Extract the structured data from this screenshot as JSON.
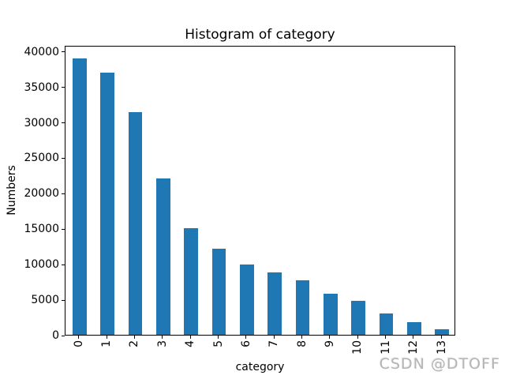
{
  "watermark": {
    "text": "CSDN @DTOFF",
    "color": "#b5b5b5"
  },
  "chart_data": {
    "type": "bar",
    "title": "Histogram of category",
    "xlabel": "category",
    "ylabel": "Numbers",
    "categories": [
      "0",
      "1",
      "2",
      "3",
      "4",
      "5",
      "6",
      "7",
      "8",
      "9",
      "10",
      "11",
      "12",
      "13"
    ],
    "values": [
      39000,
      37000,
      31400,
      22000,
      15000,
      12100,
      9900,
      8800,
      7700,
      5800,
      4800,
      3000,
      1800,
      800
    ],
    "yticks": [
      0,
      5000,
      10000,
      15000,
      20000,
      25000,
      30000,
      35000,
      40000
    ],
    "ylim": [
      0,
      40860
    ],
    "xlim": [
      -0.5,
      13.5
    ],
    "bar_color": "#1f77b4",
    "bar_width_fraction": 0.5,
    "x_tick_rotation": 90,
    "grid": false,
    "legend": null
  }
}
